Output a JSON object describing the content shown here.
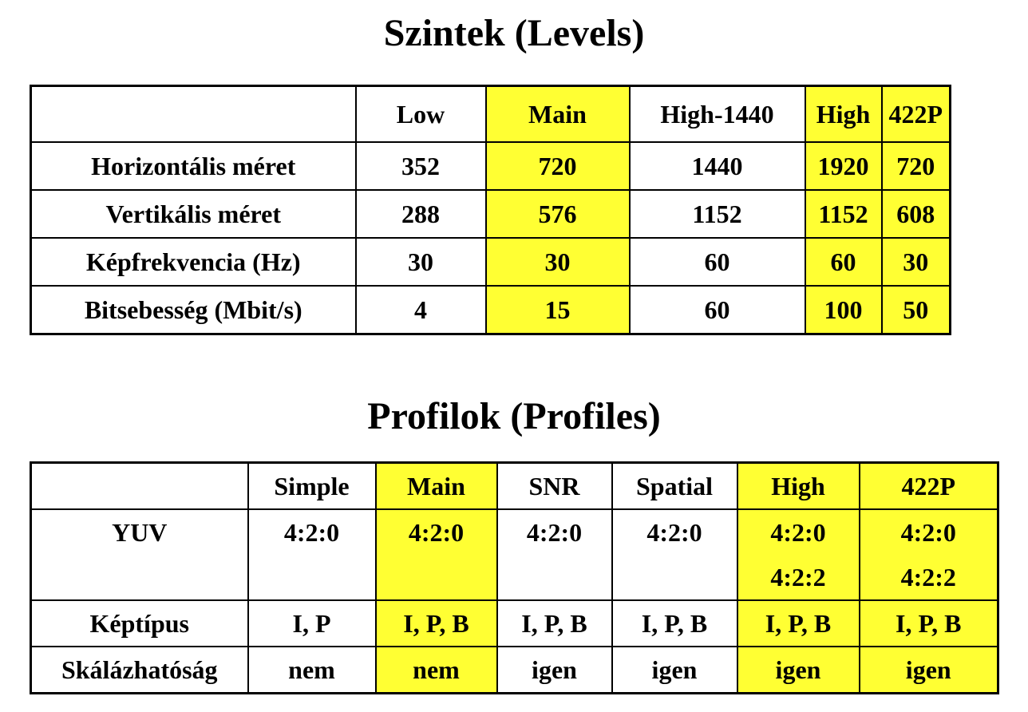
{
  "levels": {
    "title": "Szintek (Levels)",
    "columns": [
      "",
      "Low",
      "Main",
      "High-1440",
      "High",
      "422P"
    ],
    "rows": [
      {
        "label": "Horizontális méret",
        "values": [
          "352",
          "720",
          "1440",
          "1920",
          "720"
        ]
      },
      {
        "label": "Vertikális méret",
        "values": [
          "288",
          "576",
          "1152",
          "1152",
          "608"
        ]
      },
      {
        "label": "Képfrekvencia (Hz)",
        "values": [
          "30",
          "30",
          "60",
          "60",
          "30"
        ]
      },
      {
        "label": "Bitsebesség (Mbit/s)",
        "values": [
          "4",
          "15",
          "60",
          "100",
          "50"
        ]
      }
    ]
  },
  "profiles": {
    "title": "Profilok (Profiles)",
    "columns": [
      "",
      "Simple",
      "Main",
      "SNR",
      "Spatial",
      "High",
      "422P"
    ],
    "yuv": {
      "label": "YUV",
      "values": [
        [
          "4:2:0"
        ],
        [
          "4:2:0"
        ],
        [
          "4:2:0"
        ],
        [
          "4:2:0"
        ],
        [
          "4:2:0",
          "4:2:2"
        ],
        [
          "4:2:0",
          "4:2:2"
        ]
      ]
    },
    "rows": [
      {
        "label": "Képtípus",
        "values": [
          "I, P",
          "I, P, B",
          "I, P, B",
          "I, P, B",
          "I, P, B",
          "I, P, B"
        ]
      },
      {
        "label": "Skálázhatóság",
        "values": [
          "nem",
          "nem",
          "igen",
          "igen",
          "igen",
          "igen"
        ]
      }
    ]
  },
  "colors": {
    "highlight": "#ffff33",
    "border": "#000000",
    "background": "#ffffff"
  }
}
